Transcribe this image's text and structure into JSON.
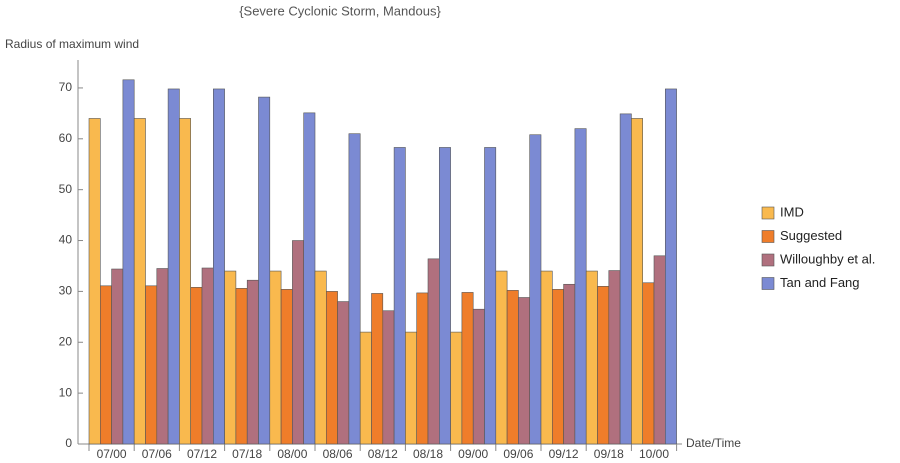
{
  "chart_data": {
    "type": "bar",
    "title": "{Severe Cyclonic Storm, Mandous}",
    "y_label": "Radius of maximum wind",
    "x_label": "Date/Time",
    "categories": [
      "07/00",
      "07/06",
      "07/12",
      "07/18",
      "08/00",
      "08/06",
      "08/12",
      "08/18",
      "09/00",
      "09/06",
      "09/12",
      "09/18",
      "10/00"
    ],
    "series": [
      {
        "name": "IMD",
        "color": "#f9b94e",
        "values": [
          64,
          64,
          64,
          34,
          34,
          34,
          22,
          22,
          22,
          34,
          34,
          34,
          64
        ]
      },
      {
        "name": "Suggested",
        "color": "#ef7d2a",
        "values": [
          31.1,
          31.1,
          30.8,
          30.6,
          30.4,
          30.0,
          29.6,
          29.7,
          29.8,
          30.2,
          30.4,
          31.0,
          31.7
        ]
      },
      {
        "name": "Willoughby et al.",
        "color": "#b0707e",
        "values": [
          34.4,
          34.5,
          34.6,
          32.2,
          40.0,
          28.0,
          26.2,
          36.4,
          26.5,
          28.8,
          31.4,
          34.1,
          37.0
        ]
      },
      {
        "name": "Tan and Fang",
        "color": "#7b8ad3",
        "values": [
          71.6,
          69.8,
          69.8,
          68.2,
          65.1,
          61.0,
          58.3,
          58.3,
          58.3,
          60.8,
          62.0,
          64.9,
          69.8
        ]
      }
    ],
    "ylim": [
      0,
      75
    ],
    "yticks": [
      0,
      10,
      20,
      30,
      40,
      50,
      60,
      70
    ],
    "legend": "right"
  }
}
